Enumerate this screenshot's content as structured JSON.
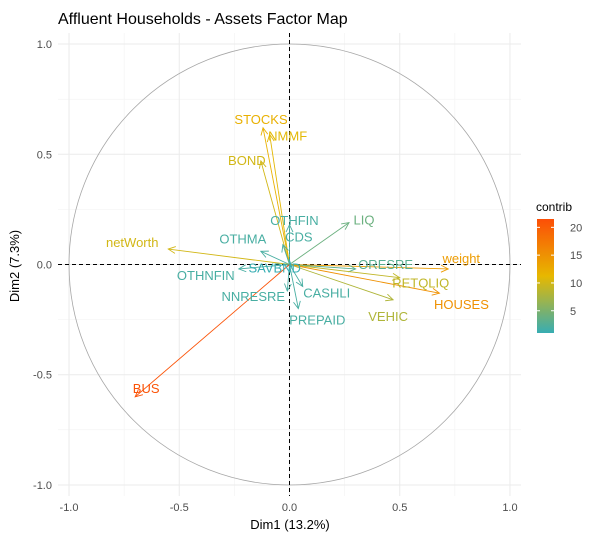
{
  "chart_data": {
    "type": "scatter",
    "title": "Affluent Households - Assets Factor Map",
    "xlabel": "Dim1 (13.2%)",
    "ylabel": "Dim2 (7.3%)",
    "xlim": [
      -1.05,
      1.05
    ],
    "ylim": [
      -1.05,
      1.05
    ],
    "x_ticks": [
      {
        "value": -1.0,
        "label": "-1.0"
      },
      {
        "value": -0.5,
        "label": "-0.5"
      },
      {
        "value": 0.0,
        "label": "0.0"
      },
      {
        "value": 0.5,
        "label": "0.5"
      },
      {
        "value": 1.0,
        "label": "1.0"
      }
    ],
    "y_ticks": [
      {
        "value": -1.0,
        "label": "-1.0"
      },
      {
        "value": -0.5,
        "label": "-0.5"
      },
      {
        "value": 0.0,
        "label": "0.0"
      },
      {
        "value": 0.5,
        "label": "0.5"
      },
      {
        "value": 1.0,
        "label": "1.0"
      }
    ],
    "grid": true,
    "unit_circle": true,
    "variables": [
      {
        "name": "STOCKS",
        "x": -0.12,
        "y": 0.62,
        "contrib": 12
      },
      {
        "name": "NMMF",
        "x": -0.09,
        "y": 0.59,
        "contrib": 11
      },
      {
        "name": "BOND",
        "x": -0.13,
        "y": 0.47,
        "contrib": 10
      },
      {
        "name": "LIQ",
        "x": 0.27,
        "y": 0.19,
        "contrib": 4
      },
      {
        "name": "OTHFIN",
        "x": 0.0,
        "y": 0.18,
        "contrib": 2
      },
      {
        "name": "CDS",
        "x": -0.03,
        "y": 0.09,
        "contrib": 2
      },
      {
        "name": "OTHMA",
        "x": -0.13,
        "y": 0.06,
        "contrib": 2
      },
      {
        "name": "netWorth",
        "x": -0.55,
        "y": 0.07,
        "contrib": 10
      },
      {
        "name": "weight",
        "x": 0.72,
        "y": -0.02,
        "contrib": 14
      },
      {
        "name": "ORESRE",
        "x": 0.3,
        "y": -0.02,
        "contrib": 3
      },
      {
        "name": "RETQLIQ",
        "x": 0.5,
        "y": -0.06,
        "contrib": 9
      },
      {
        "name": "HOUSES",
        "x": 0.68,
        "y": -0.13,
        "contrib": 15
      },
      {
        "name": "VEHIC",
        "x": 0.47,
        "y": -0.16,
        "contrib": 8
      },
      {
        "name": "CASHLI",
        "x": 0.06,
        "y": -0.1,
        "contrib": 2
      },
      {
        "name": "PREPAID",
        "x": 0.04,
        "y": -0.2,
        "contrib": 2
      },
      {
        "name": "NNRESRE",
        "x": -0.01,
        "y": -0.12,
        "contrib": 2
      },
      {
        "name": "OTHNFIN",
        "x": -0.23,
        "y": -0.02,
        "contrib": 2
      },
      {
        "name": "SAVBND",
        "x": 0.01,
        "y": -0.01,
        "contrib": 1
      },
      {
        "name": "BUS",
        "x": -0.7,
        "y": -0.6,
        "contrib": 21
      }
    ],
    "legend": {
      "title": "contrib",
      "placement": "right",
      "min": 1,
      "max": 21.5,
      "ticks": [
        {
          "value": 5,
          "label": "5"
        },
        {
          "value": 10,
          "label": "10"
        },
        {
          "value": 15,
          "label": "15"
        },
        {
          "value": 20,
          "label": "20"
        }
      ],
      "gradient_colors": [
        "#37ADB3",
        "#E7B800",
        "#FC4E07"
      ]
    }
  }
}
